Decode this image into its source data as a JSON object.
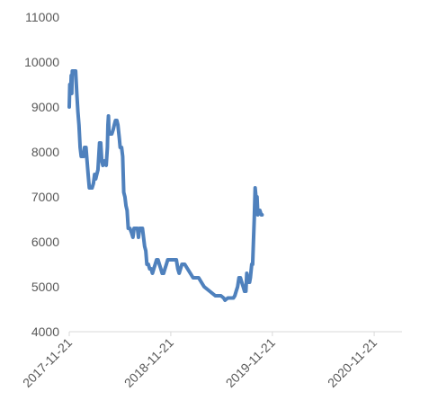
{
  "chart_data": {
    "type": "line",
    "title": "",
    "xlabel": "",
    "ylabel": "",
    "ylim": [
      4000,
      11000
    ],
    "y_ticks": [
      4000,
      5000,
      6000,
      7000,
      8000,
      9000,
      10000,
      11000
    ],
    "y_tick_labels": [
      "4000",
      "5000",
      "6000",
      "7000",
      "8000",
      "9000",
      "10000",
      "11000"
    ],
    "x_ticks": [
      "2017-11-21",
      "2018-11-21",
      "2019-11-21",
      "2020-11-21"
    ],
    "xlim": [
      "2017-11-21",
      "2021-03-01"
    ],
    "grid": false,
    "legend": "none",
    "series": [
      {
        "color": "#4f81bd",
        "points": [
          [
            "2017-11-21",
            9000
          ],
          [
            "2017-11-23",
            9500
          ],
          [
            "2017-11-26",
            9300
          ],
          [
            "2017-11-28",
            9700
          ],
          [
            "2017-11-30",
            9300
          ],
          [
            "2017-12-02",
            9800
          ],
          [
            "2017-12-06",
            9800
          ],
          [
            "2017-12-10",
            9800
          ],
          [
            "2017-12-14",
            9800
          ],
          [
            "2017-12-18",
            9300
          ],
          [
            "2017-12-22",
            8900
          ],
          [
            "2017-12-26",
            8600
          ],
          [
            "2017-12-30",
            8100
          ],
          [
            "2018-01-03",
            7900
          ],
          [
            "2018-01-08",
            7900
          ],
          [
            "2018-01-12",
            7900
          ],
          [
            "2018-01-15",
            8100
          ],
          [
            "2018-01-20",
            8100
          ],
          [
            "2018-01-24",
            7800
          ],
          [
            "2018-01-28",
            7500
          ],
          [
            "2018-02-01",
            7200
          ],
          [
            "2018-02-06",
            7200
          ],
          [
            "2018-02-11",
            7200
          ],
          [
            "2018-02-16",
            7300
          ],
          [
            "2018-02-20",
            7500
          ],
          [
            "2018-02-24",
            7400
          ],
          [
            "2018-02-28",
            7500
          ],
          [
            "2018-03-04",
            7600
          ],
          [
            "2018-03-08",
            8000
          ],
          [
            "2018-03-10",
            8200
          ],
          [
            "2018-03-12",
            7900
          ],
          [
            "2018-03-14",
            8200
          ],
          [
            "2018-03-18",
            7800
          ],
          [
            "2018-03-22",
            7700
          ],
          [
            "2018-03-28",
            7800
          ],
          [
            "2018-04-03",
            7700
          ],
          [
            "2018-04-07",
            8100
          ],
          [
            "2018-04-09",
            8600
          ],
          [
            "2018-04-11",
            8800
          ],
          [
            "2018-04-13",
            8400
          ],
          [
            "2018-04-18",
            8400
          ],
          [
            "2018-04-23",
            8400
          ],
          [
            "2018-04-28",
            8500
          ],
          [
            "2018-05-02",
            8600
          ],
          [
            "2018-05-06",
            8700
          ],
          [
            "2018-05-11",
            8700
          ],
          [
            "2018-05-15",
            8600
          ],
          [
            "2018-05-20",
            8300
          ],
          [
            "2018-05-23",
            8100
          ],
          [
            "2018-05-28",
            8100
          ],
          [
            "2018-06-01",
            7900
          ],
          [
            "2018-06-03",
            7500
          ],
          [
            "2018-06-05",
            7100
          ],
          [
            "2018-06-09",
            7000
          ],
          [
            "2018-06-13",
            6800
          ],
          [
            "2018-06-17",
            6700
          ],
          [
            "2018-06-21",
            6300
          ],
          [
            "2018-06-27",
            6300
          ],
          [
            "2018-07-03",
            6200
          ],
          [
            "2018-07-08",
            6100
          ],
          [
            "2018-07-12",
            6300
          ],
          [
            "2018-07-18",
            6300
          ],
          [
            "2018-07-24",
            6300
          ],
          [
            "2018-07-28",
            6100
          ],
          [
            "2018-08-01",
            6300
          ],
          [
            "2018-08-06",
            6300
          ],
          [
            "2018-08-11",
            6300
          ],
          [
            "2018-08-15",
            6100
          ],
          [
            "2018-08-19",
            5900
          ],
          [
            "2018-08-23",
            5800
          ],
          [
            "2018-08-27",
            5500
          ],
          [
            "2018-09-01",
            5500
          ],
          [
            "2018-09-06",
            5400
          ],
          [
            "2018-09-11",
            5400
          ],
          [
            "2018-09-16",
            5300
          ],
          [
            "2018-09-21",
            5400
          ],
          [
            "2018-09-26",
            5500
          ],
          [
            "2018-10-01",
            5600
          ],
          [
            "2018-10-06",
            5600
          ],
          [
            "2018-10-11",
            5500
          ],
          [
            "2018-10-16",
            5400
          ],
          [
            "2018-10-21",
            5300
          ],
          [
            "2018-10-26",
            5300
          ],
          [
            "2018-10-31",
            5400
          ],
          [
            "2018-11-05",
            5500
          ],
          [
            "2018-11-10",
            5600
          ],
          [
            "2018-11-21",
            5600
          ],
          [
            "2018-12-01",
            5600
          ],
          [
            "2018-12-11",
            5600
          ],
          [
            "2018-12-16",
            5400
          ],
          [
            "2018-12-21",
            5300
          ],
          [
            "2018-12-26",
            5400
          ],
          [
            "2018-12-31",
            5500
          ],
          [
            "2019-01-10",
            5500
          ],
          [
            "2019-01-20",
            5400
          ],
          [
            "2019-01-30",
            5300
          ],
          [
            "2019-02-09",
            5200
          ],
          [
            "2019-02-19",
            5200
          ],
          [
            "2019-03-01",
            5200
          ],
          [
            "2019-03-11",
            5100
          ],
          [
            "2019-03-21",
            5000
          ],
          [
            "2019-03-31",
            4950
          ],
          [
            "2019-04-10",
            4900
          ],
          [
            "2019-04-20",
            4850
          ],
          [
            "2019-04-30",
            4800
          ],
          [
            "2019-05-10",
            4800
          ],
          [
            "2019-05-20",
            4800
          ],
          [
            "2019-05-30",
            4750
          ],
          [
            "2019-06-04",
            4700
          ],
          [
            "2019-06-14",
            4750
          ],
          [
            "2019-06-24",
            4750
          ],
          [
            "2019-07-04",
            4750
          ],
          [
            "2019-07-09",
            4800
          ],
          [
            "2019-07-14",
            4900
          ],
          [
            "2019-07-19",
            5000
          ],
          [
            "2019-07-24",
            5200
          ],
          [
            "2019-07-29",
            5200
          ],
          [
            "2019-08-03",
            5100
          ],
          [
            "2019-08-08",
            5000
          ],
          [
            "2019-08-13",
            4900
          ],
          [
            "2019-08-18",
            4900
          ],
          [
            "2019-08-21",
            5300
          ],
          [
            "2019-08-24",
            5200
          ],
          [
            "2019-08-27",
            5100
          ],
          [
            "2019-08-31",
            5100
          ],
          [
            "2019-09-03",
            5200
          ],
          [
            "2019-09-08",
            5500
          ],
          [
            "2019-09-11",
            5500
          ],
          [
            "2019-09-14",
            6000
          ],
          [
            "2019-09-17",
            6500
          ],
          [
            "2019-09-20",
            7200
          ],
          [
            "2019-09-23",
            7000
          ],
          [
            "2019-09-27",
            7000
          ],
          [
            "2019-09-30",
            6600
          ],
          [
            "2019-10-03",
            6700
          ],
          [
            "2019-10-07",
            6700
          ],
          [
            "2019-10-12",
            6600
          ],
          [
            "2019-10-15",
            6600
          ]
        ]
      }
    ]
  }
}
